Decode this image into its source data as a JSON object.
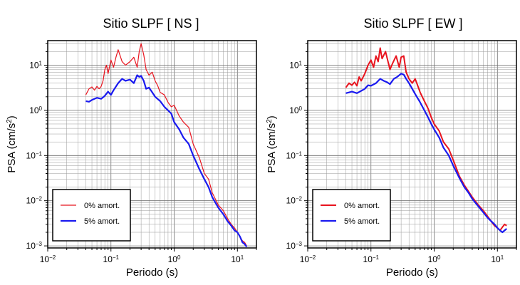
{
  "chart_data": [
    {
      "type": "line",
      "title": "Sitio SLPF [ NS ]",
      "xlabel": "Periodo (s)",
      "ylabel_base": "PSA (cm/s",
      "ylabel_sup": "2",
      "ylabel_end": ")",
      "xscale": "log",
      "yscale": "log",
      "xlim": [
        0.01,
        20
      ],
      "ylim": [
        0.0009,
        35
      ],
      "grid": true,
      "legend_position": "bottom-left",
      "xticks": [
        {
          "value": 0.01,
          "base": "10",
          "exp": "−2"
        },
        {
          "value": 0.1,
          "base": "10",
          "exp": "−1"
        },
        {
          "value": 1,
          "base": "10",
          "exp": "0"
        },
        {
          "value": 10,
          "base": "10",
          "exp": "1"
        }
      ],
      "yticks": [
        {
          "value": 0.001,
          "base": "10",
          "exp": "−3"
        },
        {
          "value": 0.01,
          "base": "10",
          "exp": "−2"
        },
        {
          "value": 0.1,
          "base": "10",
          "exp": "−1"
        },
        {
          "value": 1,
          "base": "10",
          "exp": "0"
        },
        {
          "value": 10,
          "base": "10",
          "exp": "1"
        }
      ],
      "series": [
        {
          "name": "0% amort.",
          "color": "#e8141e",
          "width": 1.2,
          "x": [
            0.04,
            0.045,
            0.05,
            0.055,
            0.06,
            0.065,
            0.07,
            0.075,
            0.08,
            0.085,
            0.09,
            0.1,
            0.11,
            0.12,
            0.13,
            0.15,
            0.17,
            0.2,
            0.23,
            0.26,
            0.28,
            0.3,
            0.33,
            0.36,
            0.4,
            0.45,
            0.5,
            0.55,
            0.6,
            0.7,
            0.8,
            0.9,
            1.0,
            1.2,
            1.4,
            1.7,
            2.0,
            2.5,
            3.0,
            3.5,
            4.0,
            5.0,
            6.0,
            7.0,
            8.0,
            9.0,
            10.0,
            11.0,
            12.0,
            13.0,
            14.0
          ],
          "y": [
            2.2,
            3.0,
            3.3,
            2.8,
            3.4,
            3.0,
            3.4,
            4.5,
            8.0,
            10.0,
            6.5,
            13.0,
            9.0,
            15.0,
            22.0,
            12.0,
            10.0,
            12.0,
            15.0,
            9.0,
            20.0,
            30.0,
            17.0,
            8.0,
            6.0,
            7.0,
            4.5,
            3.5,
            2.5,
            2.2,
            1.5,
            1.2,
            1.3,
            0.75,
            0.55,
            0.42,
            0.18,
            0.09,
            0.04,
            0.03,
            0.015,
            0.008,
            0.006,
            0.004,
            0.003,
            0.0025,
            0.002,
            0.0016,
            0.0013,
            0.0012,
            0.001
          ]
        },
        {
          "name": "5% amort.",
          "color": "#1a1af0",
          "width": 2.2,
          "x": [
            0.04,
            0.045,
            0.05,
            0.06,
            0.07,
            0.08,
            0.09,
            0.1,
            0.11,
            0.13,
            0.15,
            0.17,
            0.2,
            0.23,
            0.26,
            0.28,
            0.3,
            0.33,
            0.36,
            0.4,
            0.45,
            0.5,
            0.6,
            0.7,
            0.8,
            0.9,
            1.0,
            1.2,
            1.4,
            1.7,
            2.0,
            2.5,
            3.0,
            3.5,
            4.0,
            5.0,
            6.0,
            7.0,
            8.0,
            9.0,
            10.0,
            11.0,
            12.0,
            13.0,
            14.0
          ],
          "y": [
            1.6,
            1.55,
            1.7,
            1.9,
            1.8,
            2.1,
            2.6,
            2.2,
            2.8,
            4.0,
            5.0,
            4.5,
            4.8,
            4.0,
            6.0,
            5.5,
            5.8,
            4.5,
            3.0,
            3.2,
            2.5,
            2.0,
            1.6,
            1.2,
            1.0,
            0.85,
            0.55,
            0.38,
            0.25,
            0.18,
            0.1,
            0.05,
            0.03,
            0.02,
            0.012,
            0.007,
            0.005,
            0.0035,
            0.0028,
            0.0022,
            0.002,
            0.0016,
            0.0012,
            0.0011,
            0.00095
          ]
        }
      ]
    },
    {
      "type": "line",
      "title": "Sitio SLPF [ EW ]",
      "xlabel": "Periodo (s)",
      "ylabel_base": "PSA (cm/s",
      "ylabel_sup": "2",
      "ylabel_end": ")",
      "xscale": "log",
      "yscale": "log",
      "xlim": [
        0.01,
        20
      ],
      "ylim": [
        0.0009,
        35
      ],
      "grid": true,
      "legend_position": "bottom-left",
      "xticks": [
        {
          "value": 0.01,
          "base": "10",
          "exp": "−2"
        },
        {
          "value": 0.1,
          "base": "10",
          "exp": "−1"
        },
        {
          "value": 1,
          "base": "10",
          "exp": "0"
        },
        {
          "value": 10,
          "base": "10",
          "exp": "1"
        }
      ],
      "yticks": [
        {
          "value": 0.001,
          "base": "10",
          "exp": "−3"
        },
        {
          "value": 0.01,
          "base": "10",
          "exp": "−2"
        },
        {
          "value": 0.1,
          "base": "10",
          "exp": "−1"
        },
        {
          "value": 1,
          "base": "10",
          "exp": "0"
        },
        {
          "value": 10,
          "base": "10",
          "exp": "1"
        }
      ],
      "series": [
        {
          "name": "0% amort.",
          "color": "#e8141e",
          "width": 2.0,
          "x": [
            0.04,
            0.045,
            0.05,
            0.055,
            0.06,
            0.065,
            0.07,
            0.08,
            0.09,
            0.1,
            0.11,
            0.12,
            0.13,
            0.14,
            0.15,
            0.17,
            0.2,
            0.22,
            0.25,
            0.28,
            0.3,
            0.33,
            0.36,
            0.4,
            0.45,
            0.5,
            0.55,
            0.6,
            0.7,
            0.8,
            0.9,
            1.0,
            1.2,
            1.4,
            1.7,
            2.0,
            2.5,
            3.0,
            3.5,
            4.0,
            5.0,
            6.0,
            7.0,
            8.0,
            9.0,
            10.0,
            11.0,
            12.0,
            13.0,
            14.0
          ],
          "y": [
            3.2,
            4.0,
            3.6,
            4.2,
            3.5,
            5.5,
            4.5,
            6.5,
            10.0,
            13.0,
            9.0,
            16.0,
            12.0,
            24.0,
            14.0,
            20.0,
            8.0,
            11.0,
            16.0,
            9.0,
            15.0,
            16.0,
            7.0,
            5.0,
            4.0,
            5.0,
            3.5,
            2.5,
            1.6,
            1.1,
            0.7,
            0.5,
            0.35,
            0.2,
            0.14,
            0.08,
            0.035,
            0.022,
            0.016,
            0.012,
            0.008,
            0.006,
            0.0045,
            0.0035,
            0.0028,
            0.0025,
            0.0022,
            0.0026,
            0.003,
            0.0028
          ]
        },
        {
          "name": "5% amort.",
          "color": "#1a1af0",
          "width": 2.2,
          "x": [
            0.04,
            0.045,
            0.05,
            0.06,
            0.07,
            0.08,
            0.09,
            0.1,
            0.12,
            0.14,
            0.16,
            0.18,
            0.2,
            0.23,
            0.26,
            0.3,
            0.33,
            0.36,
            0.4,
            0.45,
            0.5,
            0.6,
            0.7,
            0.8,
            0.9,
            1.0,
            1.2,
            1.4,
            1.7,
            2.0,
            2.5,
            3.0,
            3.5,
            4.0,
            5.0,
            6.0,
            7.0,
            8.0,
            9.0,
            10.0,
            11.0,
            12.0,
            13.0,
            14.0
          ],
          "y": [
            2.4,
            2.5,
            2.6,
            2.4,
            2.7,
            3.0,
            3.6,
            3.5,
            4.0,
            5.0,
            4.5,
            4.2,
            3.8,
            5.0,
            5.5,
            6.5,
            6.2,
            5.0,
            4.0,
            3.0,
            2.3,
            1.5,
            1.0,
            0.7,
            0.5,
            0.38,
            0.25,
            0.15,
            0.1,
            0.06,
            0.032,
            0.02,
            0.015,
            0.011,
            0.0075,
            0.0055,
            0.0042,
            0.0035,
            0.003,
            0.0025,
            0.0022,
            0.002,
            0.0022,
            0.0024
          ]
        }
      ]
    }
  ]
}
